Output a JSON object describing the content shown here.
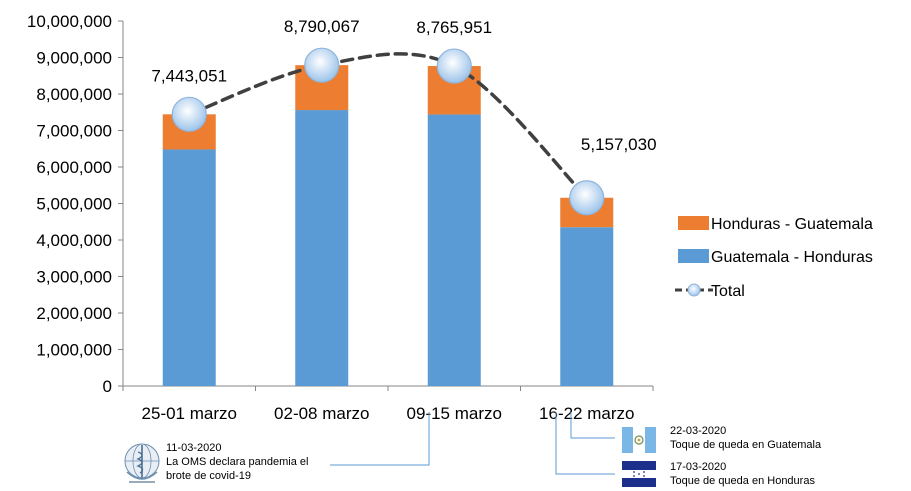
{
  "chart_data": {
    "type": "bar",
    "stacked": true,
    "categories": [
      "25-01 marzo",
      "02-08 marzo",
      "09-15 marzo",
      "16-22 marzo"
    ],
    "series": [
      {
        "name": "Guatemala - Honduras",
        "kind": "bar",
        "color": "#5B9BD5",
        "values": [
          6480000,
          7560000,
          7440000,
          4350000
        ]
      },
      {
        "name": "Honduras - Guatemala",
        "kind": "bar",
        "color": "#ED7D31",
        "values": [
          963051,
          1230067,
          1325951,
          807030
        ]
      },
      {
        "name": "Total",
        "kind": "line",
        "style": "dashed",
        "color": "#404040",
        "values": [
          7443051,
          8790067,
          8765951,
          5157030
        ]
      }
    ],
    "data_labels": [
      "7,443,051",
      "8,790,067",
      "8,765,951",
      "5,157,030"
    ],
    "ylim": [
      0,
      10000000
    ],
    "yticks": [
      0,
      1000000,
      2000000,
      3000000,
      4000000,
      5000000,
      6000000,
      7000000,
      8000000,
      9000000,
      10000000
    ],
    "ytick_labels": [
      "0",
      "1,000,000",
      "2,000,000",
      "3,000,000",
      "4,000,000",
      "5,000,000",
      "6,000,000",
      "7,000,000",
      "8,000,000",
      "9,000,000",
      "10,000,000"
    ],
    "legend_position": "right",
    "legend": [
      "Honduras - Guatemala",
      "Guatemala - Honduras",
      "Total"
    ],
    "grid": false
  },
  "annotations": {
    "who": {
      "date": "11-03-2020",
      "line1": "La OMS declara pandemia el",
      "line2": "brote de covid-19",
      "icon": "who-logo-icon"
    },
    "guatemala": {
      "date": "22-03-2020",
      "text": "Toque de queda en Guatemala",
      "icon": "guatemala-flag-icon"
    },
    "honduras": {
      "date": "17-03-2020",
      "text": "Toque de queda en Honduras",
      "icon": "honduras-flag-icon"
    }
  }
}
